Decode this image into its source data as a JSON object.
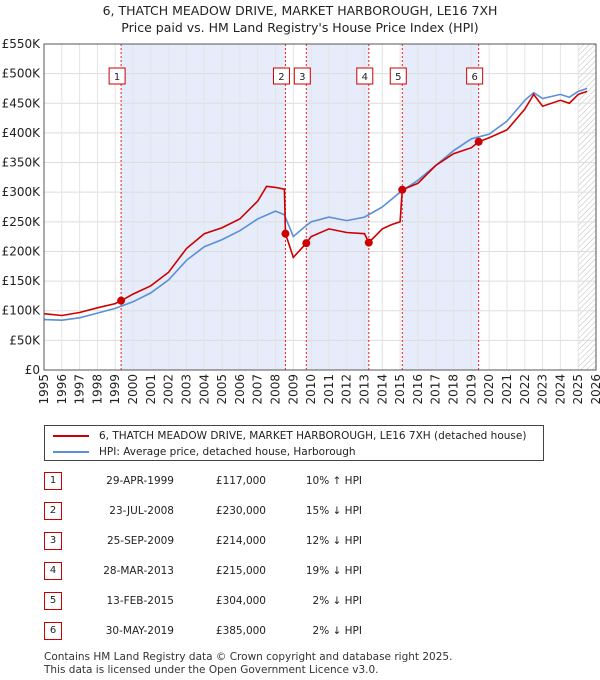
{
  "title_line1": "6, THATCH MEADOW DRIVE, MARKET HARBOROUGH, LE16 7XH",
  "title_line2": "Price paid vs. HM Land Registry's House Price Index (HPI)",
  "colors": {
    "property": "#cc0000",
    "hpi": "#5b8fd6",
    "shade": "#e6ecf9",
    "marker_line": "#dd2222"
  },
  "chart_data": {
    "type": "line",
    "xlim": [
      1995,
      2026
    ],
    "ylim": [
      0,
      550000
    ],
    "y_ticks": [
      0,
      50000,
      100000,
      150000,
      200000,
      250000,
      300000,
      350000,
      400000,
      450000,
      500000,
      550000
    ],
    "y_tick_labels": [
      "£0",
      "£50K",
      "£100K",
      "£150K",
      "£200K",
      "£250K",
      "£300K",
      "£350K",
      "£400K",
      "£450K",
      "£500K",
      "£550K"
    ],
    "x_ticks": [
      1995,
      1996,
      1997,
      1998,
      1999,
      2000,
      2001,
      2002,
      2003,
      2004,
      2005,
      2006,
      2007,
      2008,
      2009,
      2010,
      2011,
      2012,
      2013,
      2014,
      2015,
      2016,
      2017,
      2018,
      2019,
      2020,
      2021,
      2022,
      2023,
      2024,
      2025,
      2026
    ],
    "x_tick_labels": [
      "1995",
      "1996",
      "1997",
      "1998",
      "1999",
      "2000",
      "2001",
      "2002",
      "2003",
      "2004",
      "2005",
      "2006",
      "2007",
      "2008",
      "2009",
      "2010",
      "2011",
      "2012",
      "2013",
      "2014",
      "2015",
      "2016",
      "2017",
      "2018",
      "2019",
      "2020",
      "2021",
      "2022",
      "2023",
      "2024",
      "2025",
      "2026"
    ],
    "shaded_ranges": [
      [
        1999.33,
        2008.56
      ],
      [
        2009.73,
        2013.24
      ],
      [
        2015.12,
        2019.41
      ]
    ],
    "forecast_from": 2025.0,
    "series": [
      {
        "name": "6, THATCH MEADOW DRIVE, MARKET HARBOROUGH, LE16 7XH (detached house)",
        "x": [
          1995.0,
          1996.0,
          1997.0,
          1998.0,
          1999.0,
          1999.33,
          2000.0,
          2001.0,
          2002.0,
          2003.0,
          2004.0,
          2005.0,
          2006.0,
          2007.0,
          2007.5,
          2008.0,
          2008.5,
          2008.56,
          2009.0,
          2009.73,
          2010.0,
          2011.0,
          2012.0,
          2013.0,
          2013.24,
          2014.0,
          2014.5,
          2015.0,
          2015.12,
          2016.0,
          2017.0,
          2018.0,
          2019.0,
          2019.41,
          2020.0,
          2021.0,
          2022.0,
          2022.5,
          2023.0,
          2024.0,
          2024.5,
          2025.0,
          2025.5
        ],
        "values": [
          95000,
          92000,
          97000,
          105000,
          112000,
          117000,
          128000,
          142000,
          165000,
          205000,
          230000,
          240000,
          255000,
          285000,
          310000,
          308000,
          305000,
          230000,
          190000,
          214000,
          225000,
          238000,
          232000,
          230000,
          215000,
          238000,
          245000,
          250000,
          304000,
          315000,
          345000,
          365000,
          375000,
          385000,
          392000,
          405000,
          440000,
          465000,
          445000,
          455000,
          450000,
          465000,
          470000
        ]
      },
      {
        "name": "HPI: Average price, detached house, Harborough",
        "x": [
          1995.0,
          1996.0,
          1997.0,
          1998.0,
          1999.0,
          2000.0,
          2001.0,
          2002.0,
          2003.0,
          2004.0,
          2005.0,
          2006.0,
          2007.0,
          2008.0,
          2008.5,
          2009.0,
          2009.5,
          2010.0,
          2011.0,
          2012.0,
          2013.0,
          2014.0,
          2015.0,
          2016.0,
          2017.0,
          2018.0,
          2019.0,
          2020.0,
          2021.0,
          2022.0,
          2022.5,
          2023.0,
          2024.0,
          2024.5,
          2025.0,
          2025.5
        ],
        "values": [
          85000,
          84000,
          88000,
          96000,
          104000,
          115000,
          130000,
          152000,
          185000,
          208000,
          220000,
          235000,
          255000,
          268000,
          262000,
          225000,
          238000,
          250000,
          258000,
          252000,
          258000,
          275000,
          300000,
          320000,
          345000,
          370000,
          390000,
          398000,
          420000,
          455000,
          468000,
          458000,
          465000,
          460000,
          470000,
          475000
        ]
      }
    ],
    "sale_points": [
      {
        "label": "1",
        "x": 1999.33,
        "y": 117000
      },
      {
        "label": "2",
        "x": 2008.56,
        "y": 230000
      },
      {
        "label": "3",
        "x": 2009.73,
        "y": 214000
      },
      {
        "label": "4",
        "x": 2013.24,
        "y": 215000
      },
      {
        "label": "5",
        "x": 2015.12,
        "y": 304000
      },
      {
        "label": "6",
        "x": 2019.41,
        "y": 385000
      }
    ]
  },
  "legend": {
    "property": "6, THATCH MEADOW DRIVE, MARKET HARBOROUGH, LE16 7XH (detached house)",
    "hpi": "HPI: Average price, detached house, Harborough"
  },
  "sales": [
    {
      "num": "1",
      "date": "29-APR-1999",
      "price": "£117,000",
      "hpi": "10% ↑ HPI"
    },
    {
      "num": "2",
      "date": "23-JUL-2008",
      "price": "£230,000",
      "hpi": "15% ↓ HPI"
    },
    {
      "num": "3",
      "date": "25-SEP-2009",
      "price": "£214,000",
      "hpi": "12% ↓ HPI"
    },
    {
      "num": "4",
      "date": "28-MAR-2013",
      "price": "£215,000",
      "hpi": "19% ↓ HPI"
    },
    {
      "num": "5",
      "date": "13-FEB-2015",
      "price": "£304,000",
      "hpi": "2% ↓ HPI"
    },
    {
      "num": "6",
      "date": "30-MAY-2019",
      "price": "£385,000",
      "hpi": "2% ↓ HPI"
    }
  ],
  "footer_line1": "Contains HM Land Registry data © Crown copyright and database right 2025.",
  "footer_line2": "This data is licensed under the Open Government Licence v3.0."
}
